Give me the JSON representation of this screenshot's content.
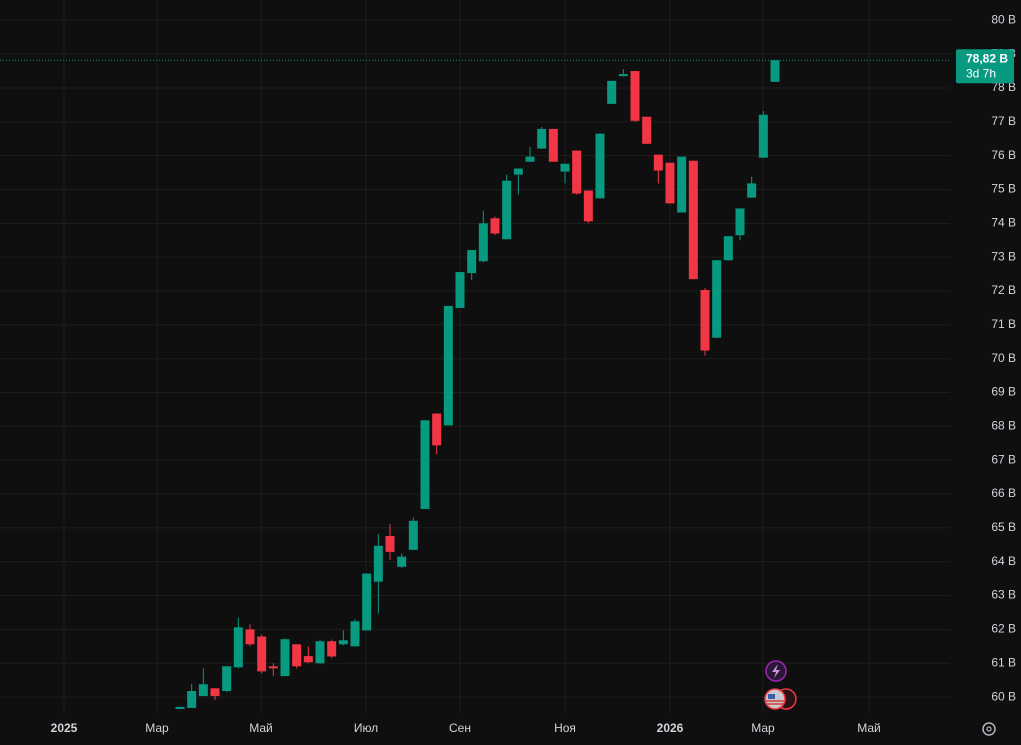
{
  "chart_data": {
    "type": "candlestick",
    "categories": [
      null,
      null,
      null,
      null,
      null,
      null,
      null,
      null,
      null,
      null,
      null,
      null,
      null,
      null,
      null,
      null,
      null,
      null,
      null,
      null,
      null,
      null,
      null,
      null,
      null,
      null,
      null,
      null,
      null,
      null,
      null,
      null,
      null,
      null,
      null,
      null,
      null,
      null,
      null,
      null,
      null,
      null,
      null,
      null,
      null,
      null,
      null,
      null,
      null,
      null,
      null,
      null
    ],
    "open": [
      59.65,
      59.68,
      60.03,
      60.26,
      60.18,
      60.88,
      62.0,
      61.79,
      60.91,
      60.62,
      61.56,
      61.21,
      61.0,
      61.65,
      61.56,
      61.5,
      61.97,
      63.41,
      64.76,
      63.85,
      64.35,
      65.56,
      68.38,
      68.03,
      71.5,
      72.53,
      72.88,
      74.15,
      73.53,
      75.44,
      75.82,
      76.21,
      76.79,
      75.53,
      76.15,
      74.97,
      74.74,
      77.53,
      78.35,
      78.5,
      77.15,
      76.03,
      75.79,
      74.32,
      75.85,
      72.03,
      70.62,
      72.91,
      73.65,
      74.76,
      75.94,
      78.18
    ],
    "high": [
      59.72,
      60.38,
      60.85,
      60.26,
      60.91,
      62.35,
      62.15,
      61.85,
      61.0,
      61.74,
      61.56,
      61.5,
      61.7,
      61.7,
      61.97,
      62.3,
      63.65,
      64.82,
      65.12,
      64.24,
      65.3,
      68.18,
      68.38,
      71.56,
      72.56,
      73.21,
      74.38,
      74.2,
      75.44,
      75.62,
      76.26,
      76.85,
      76.79,
      75.76,
      76.15,
      74.97,
      76.65,
      78.21,
      78.56,
      78.5,
      77.15,
      76.03,
      75.79,
      75.97,
      75.85,
      72.09,
      72.91,
      73.62,
      74.44,
      75.38,
      77.32,
      78.82
    ],
    "low": [
      59.64,
      59.68,
      60.03,
      59.91,
      60.15,
      60.85,
      61.5,
      60.7,
      60.62,
      60.62,
      60.85,
      61.0,
      60.97,
      61.15,
      61.53,
      61.5,
      61.97,
      62.47,
      64.06,
      63.82,
      64.35,
      65.56,
      67.18,
      68.03,
      71.5,
      72.32,
      72.85,
      73.65,
      73.53,
      74.85,
      75.82,
      76.2,
      75.82,
      75.18,
      74.85,
      74.0,
      74.74,
      77.53,
      78.35,
      77.0,
      76.35,
      75.18,
      74.59,
      74.32,
      72.35,
      70.09,
      70.62,
      72.9,
      73.5,
      74.76,
      75.94,
      78.18
    ],
    "close": [
      59.71,
      60.18,
      60.38,
      60.03,
      60.91,
      62.06,
      61.56,
      60.76,
      60.85,
      61.71,
      60.91,
      61.03,
      61.65,
      61.2,
      61.68,
      62.24,
      63.65,
      64.47,
      64.29,
      64.15,
      65.21,
      68.18,
      67.44,
      71.56,
      72.56,
      73.21,
      74.0,
      73.7,
      75.26,
      75.62,
      75.97,
      76.79,
      75.82,
      75.76,
      74.88,
      74.06,
      76.65,
      78.21,
      78.41,
      77.03,
      76.35,
      75.56,
      74.59,
      75.97,
      72.35,
      70.24,
      72.91,
      73.62,
      74.44,
      75.18,
      77.21,
      78.82
    ],
    "up_color": "#089981",
    "down_color": "#f23645",
    "ylim": [
      59.5,
      80.6
    ],
    "yticks": [
      {
        "value": 60,
        "label": "60 B"
      },
      {
        "value": 61,
        "label": "61 B"
      },
      {
        "value": 62,
        "label": "62 B"
      },
      {
        "value": 63,
        "label": "63 B"
      },
      {
        "value": 64,
        "label": "64 B"
      },
      {
        "value": 65,
        "label": "65 B"
      },
      {
        "value": 66,
        "label": "66 B"
      },
      {
        "value": 67,
        "label": "67 B"
      },
      {
        "value": 68,
        "label": "68 B"
      },
      {
        "value": 69,
        "label": "69 B"
      },
      {
        "value": 70,
        "label": "70 B"
      },
      {
        "value": 71,
        "label": "71 B"
      },
      {
        "value": 72,
        "label": "72 B"
      },
      {
        "value": 73,
        "label": "73 B"
      },
      {
        "value": 74,
        "label": "74 B"
      },
      {
        "value": 75,
        "label": "75 B"
      },
      {
        "value": 76,
        "label": "76 B"
      },
      {
        "value": 77,
        "label": "77 B"
      },
      {
        "value": 78,
        "label": "78 B"
      },
      {
        "value": 79,
        "label": "79 B"
      },
      {
        "value": 80,
        "label": "80 B"
      }
    ],
    "xtick_labels": [
      "2025",
      "Мар",
      "Май",
      "Июл",
      "Сен",
      "Ноя",
      "2026",
      "Мар",
      "Май"
    ],
    "last_price_label": "78,82 B",
    "countdown": "3d 7h",
    "grid": true
  }
}
